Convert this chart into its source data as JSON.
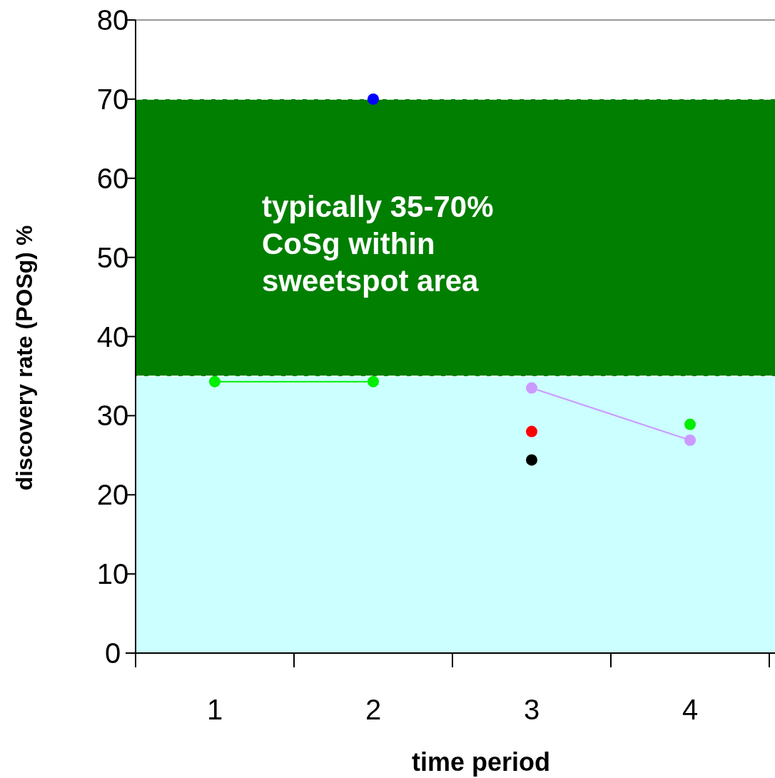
{
  "chart_data": {
    "type": "line",
    "categories": [
      "1",
      "2",
      "3",
      "4"
    ],
    "series": [
      {
        "color": "#00ee00",
        "values": [
          34.3,
          34.3,
          null,
          28.9
        ]
      },
      {
        "color": "#ff0000",
        "values": [
          null,
          null,
          28.0,
          null
        ]
      },
      {
        "color": "#000000",
        "values": [
          null,
          null,
          24.4,
          null
        ]
      },
      {
        "color": "#cc99ff",
        "values": [
          null,
          null,
          33.5,
          26.9
        ]
      },
      {
        "color": "#0000ff",
        "values": [
          null,
          70,
          null,
          null
        ]
      }
    ],
    "ylim": [
      0,
      80
    ],
    "yticks": [
      0,
      10,
      20,
      30,
      40,
      50,
      60,
      70,
      80
    ],
    "ylabel": "discovery rate (POSg) %",
    "xlabel": "time period",
    "marker": "circle",
    "grid": false,
    "bands": [
      {
        "axis": "y",
        "from": 0,
        "to": 35,
        "color": "#ccffff"
      },
      {
        "axis": "y",
        "from": 35,
        "to": 70,
        "color": "#007f00",
        "label": "typically 35-70% CoSg within sweetspot area"
      }
    ]
  }
}
